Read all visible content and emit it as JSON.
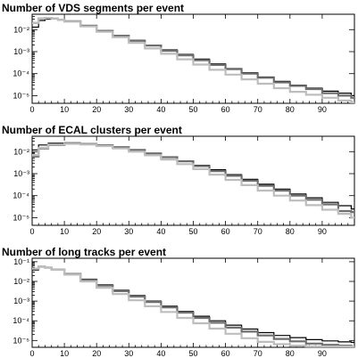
{
  "chart_data": [
    {
      "type": "line",
      "title": "Number of VDS segments per event",
      "xlabel": "",
      "ylabel": "",
      "xlim": [
        0,
        100
      ],
      "ylim": [
        4.5e-06,
        0.05
      ],
      "yscale": "log",
      "grid": false,
      "x_ticks": [
        0,
        10,
        20,
        30,
        40,
        50,
        60,
        70,
        80,
        90
      ],
      "y_tick_labels": [
        "10⁻²",
        "10⁻³",
        "10⁻⁴",
        "10⁻⁵"
      ],
      "series": [
        {
          "color": "#000000",
          "style": "step",
          "x": [
            0,
            2,
            4,
            6,
            8,
            10,
            15,
            20,
            25,
            30,
            35,
            40,
            45,
            50,
            55,
            60,
            65,
            70,
            75,
            80,
            85,
            90,
            95,
            99
          ],
          "values": [
            0.013,
            0.026,
            0.03,
            0.031,
            0.028,
            0.024,
            0.015,
            0.009,
            0.0055,
            0.0033,
            0.002,
            0.0012,
            0.00075,
            0.00046,
            0.00028,
            0.00017,
            0.00011,
            7e-05,
            4.5e-05,
            3e-05,
            2.2e-05,
            1.6e-05,
            1.3e-05,
            1e-05
          ]
        },
        {
          "color": "#6e6e6e",
          "style": "step",
          "x": [
            0,
            2,
            4,
            6,
            8,
            10,
            15,
            20,
            25,
            30,
            35,
            40,
            45,
            50,
            55,
            60,
            65,
            70,
            75,
            80,
            85,
            90,
            95,
            99
          ],
          "values": [
            0.02,
            0.032,
            0.034,
            0.032,
            0.028,
            0.024,
            0.015,
            0.0088,
            0.0053,
            0.0031,
            0.0019,
            0.0011,
            0.00068,
            0.00041,
            0.00025,
            0.00016,
            0.0001,
            6.5e-05,
            4e-05,
            2.8e-05,
            2e-05,
            1.3e-05,
            1e-05,
            8e-06
          ]
        },
        {
          "color": "#bdbdbd",
          "style": "step",
          "x": [
            0,
            2,
            4,
            6,
            8,
            10,
            15,
            20,
            25,
            30,
            35,
            40,
            45,
            50,
            55,
            60,
            65,
            70,
            75,
            80,
            85,
            90,
            95,
            99
          ],
          "values": [
            0.02,
            0.032,
            0.034,
            0.032,
            0.028,
            0.023,
            0.014,
            0.008,
            0.0045,
            0.0025,
            0.0014,
            0.0008,
            0.00045,
            0.00026,
            0.00015,
            9e-05,
            5.5e-05,
            3.5e-05,
            2.2e-05,
            1.5e-05,
            1.1e-05,
            8e-06,
            6e-06,
            5e-06
          ]
        }
      ]
    },
    {
      "type": "line",
      "title": "Number of ECAL clusters per event",
      "xlabel": "",
      "ylabel": "",
      "xlim": [
        0,
        100
      ],
      "ylim": [
        4.5e-06,
        0.05
      ],
      "yscale": "log",
      "grid": false,
      "x_ticks": [
        0,
        10,
        20,
        30,
        40,
        50,
        60,
        70,
        80,
        90
      ],
      "y_tick_labels": [
        "10⁻²",
        "10⁻³",
        "10⁻⁴",
        "10⁻⁵"
      ],
      "series": [
        {
          "color": "#000000",
          "style": "step",
          "x": [
            0,
            2,
            5,
            10,
            15,
            20,
            25,
            30,
            35,
            40,
            45,
            50,
            55,
            60,
            65,
            70,
            75,
            80,
            85,
            90,
            95,
            99
          ],
          "values": [
            0.012,
            0.02,
            0.024,
            0.025,
            0.023,
            0.02,
            0.016,
            0.012,
            0.0085,
            0.0058,
            0.0038,
            0.0024,
            0.0015,
            0.0009,
            0.00055,
            0.00033,
            0.0002,
            0.00012,
            8e-05,
            5e-05,
            3.5e-05,
            2.5e-05
          ]
        },
        {
          "color": "#6e6e6e",
          "style": "step",
          "x": [
            0,
            2,
            5,
            10,
            15,
            20,
            25,
            30,
            35,
            40,
            45,
            50,
            55,
            60,
            65,
            70,
            75,
            80,
            85,
            90,
            95,
            99
          ],
          "values": [
            0.006,
            0.014,
            0.02,
            0.023,
            0.022,
            0.019,
            0.016,
            0.012,
            0.0083,
            0.0056,
            0.0036,
            0.0022,
            0.0013,
            0.0008,
            0.00048,
            0.00028,
            0.00017,
            0.0001,
            6.5e-05,
            4e-05,
            2e-05,
            1.8e-05
          ]
        },
        {
          "color": "#bdbdbd",
          "style": "step",
          "x": [
            0,
            2,
            5,
            10,
            15,
            20,
            25,
            30,
            35,
            40,
            45,
            50,
            55,
            60,
            65,
            70,
            75,
            80,
            85,
            90,
            95,
            99
          ],
          "values": [
            0.007,
            0.015,
            0.021,
            0.023,
            0.021,
            0.018,
            0.014,
            0.01,
            0.0068,
            0.0044,
            0.0027,
            0.0016,
            0.0009,
            0.00052,
            0.0003,
            0.00017,
            0.0001,
            6e-05,
            3.7e-05,
            2.3e-05,
            1.5e-05,
            1e-05
          ]
        }
      ]
    },
    {
      "type": "line",
      "title": "Number of long tracks per event",
      "xlabel": "",
      "ylabel": "",
      "xlim": [
        0,
        100
      ],
      "ylim": [
        4.5e-06,
        0.15
      ],
      "yscale": "log",
      "grid": false,
      "x_ticks": [
        0,
        10,
        20,
        30,
        40,
        50,
        60,
        70,
        80,
        90
      ],
      "y_tick_labels": [
        "10⁻¹",
        "10⁻²",
        "10⁻³",
        "10⁻⁴",
        "10⁻⁵"
      ],
      "series": [
        {
          "color": "#000000",
          "style": "step",
          "x": [
            0,
            2,
            4,
            6,
            10,
            15,
            20,
            25,
            30,
            35,
            40,
            45,
            50,
            55,
            60,
            65,
            70,
            75,
            80,
            85,
            90,
            95,
            99
          ],
          "values": [
            0.038,
            0.055,
            0.05,
            0.04,
            0.025,
            0.013,
            0.0068,
            0.0036,
            0.0019,
            0.001,
            0.00055,
            0.0003,
            0.00017,
            0.0001,
            6e-05,
            3.8e-05,
            2.5e-05,
            1.8e-05,
            1.4e-05,
            1.1e-05,
            9.5e-06,
            8.5e-06,
            8e-06
          ]
        },
        {
          "color": "#6e6e6e",
          "style": "step",
          "x": [
            0,
            2,
            4,
            6,
            10,
            15,
            20,
            25,
            30,
            35,
            40,
            45,
            50,
            55,
            60,
            65,
            70,
            75,
            80,
            85,
            90,
            95,
            99
          ],
          "values": [
            0.045,
            0.058,
            0.05,
            0.04,
            0.024,
            0.012,
            0.0062,
            0.0032,
            0.0017,
            0.0009,
            0.00048,
            0.00026,
            0.00014,
            8e-05,
            4.5e-05,
            2.8e-05,
            1.8e-05,
            1.2e-05,
            9e-06,
            7e-06,
            6e-06,
            5.5e-06,
            5e-06
          ]
        },
        {
          "color": "#bdbdbd",
          "style": "step",
          "x": [
            0,
            2,
            4,
            6,
            10,
            15,
            20,
            25,
            30,
            35,
            40,
            45,
            50,
            55,
            60,
            65,
            70,
            75,
            80,
            85,
            90,
            95,
            99
          ],
          "values": [
            0.045,
            0.058,
            0.05,
            0.039,
            0.022,
            0.01,
            0.0048,
            0.0023,
            0.0011,
            0.00055,
            0.00028,
            0.00014,
            7.5e-05,
            4e-05,
            2.2e-05,
            1.3e-05,
            8.5e-06,
            6.5e-06,
            5.5e-06,
            5e-06,
            5e-06,
            5e-06,
            5e-06
          ]
        }
      ]
    }
  ]
}
